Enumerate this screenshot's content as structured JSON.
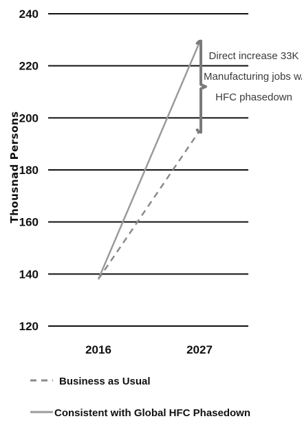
{
  "chart_data": {
    "type": "line",
    "x": [
      "2016",
      "2027"
    ],
    "ylabel": "Thousnad Persons",
    "ylim": [
      120,
      240
    ],
    "yticks": [
      120,
      140,
      160,
      180,
      200,
      220,
      240
    ],
    "grid": true,
    "legend_position": "bottom-left",
    "series": [
      {
        "name": "Business as Usual",
        "values": [
          138,
          195
        ],
        "style": "dashed",
        "color": "#8a8a8a"
      },
      {
        "name": "Consistent with Global HFC Phasedown",
        "values": [
          138,
          229
        ],
        "style": "solid",
        "color": "#9a9a9a"
      }
    ],
    "annotation": {
      "lines": [
        "Direct increase 33K",
        "Manufacturing jobs w/",
        "HFC phasedown"
      ],
      "bracket_range": [
        195,
        229
      ],
      "bracket_color": "#7a7a7a"
    }
  }
}
